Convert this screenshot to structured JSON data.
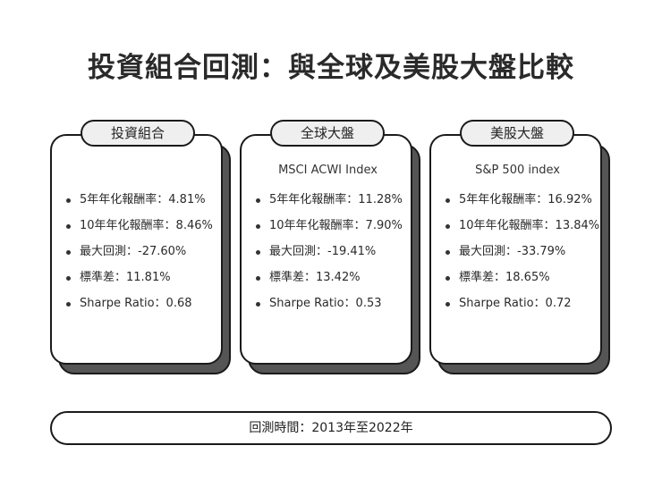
{
  "title": "投資組合回測：與全球及美股大盤比較",
  "cards": [
    {
      "tab": "投資組合",
      "subtitle": "",
      "metrics": [
        "5年年化報酬率：4.81%",
        "10年年化報酬率：8.46%",
        "最大回測：-27.60%",
        "標準差：11.81%",
        "Sharpe Ratio：0.68"
      ]
    },
    {
      "tab": "全球大盤",
      "subtitle": "MSCI ACWI Index",
      "metrics": [
        "5年年化報酬率：11.28%",
        "10年年化報酬率：7.90%",
        "最大回測：-19.41%",
        "標準差：13.42%",
        "Sharpe Ratio：0.53"
      ]
    },
    {
      "tab": "美股大盤",
      "subtitle": "S&P 500 index",
      "metrics": [
        "5年年化報酬率：16.92%",
        "10年年化報酬率：13.84%",
        "最大回測：-33.79%",
        "標準差：18.65%",
        "Sharpe Ratio：0.72"
      ]
    }
  ],
  "footer": "回測時間：2013年至2022年"
}
